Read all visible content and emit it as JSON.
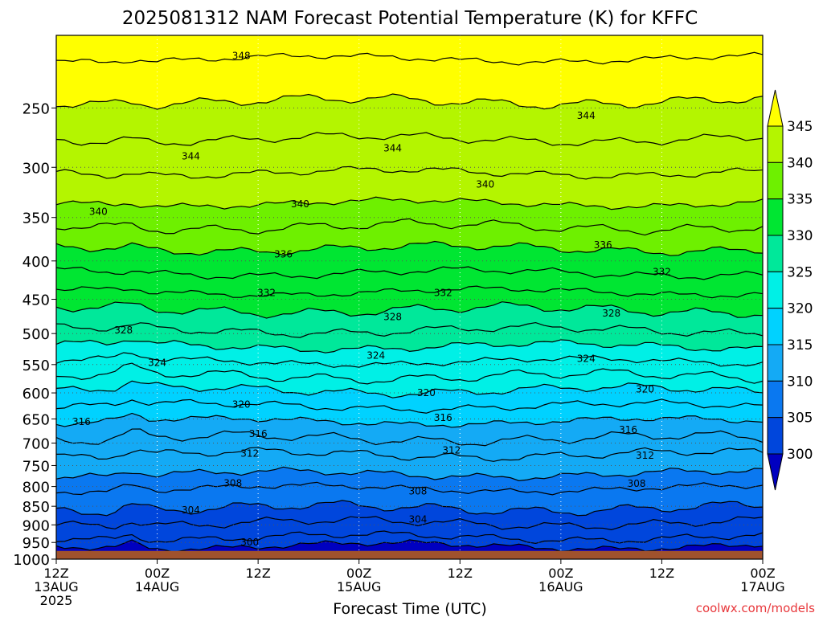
{
  "chart_data": {
    "type": "heatmap",
    "title": "2025081312 NAM Forecast Potential Temperature (K) for KFFC",
    "xlabel": "Forecast Time (UTC)",
    "ylabel": "",
    "credit": "coolwx.com/models",
    "x_ticks": [
      {
        "hours": 0,
        "line1": "12Z",
        "line2": "13AUG",
        "line3": "2025"
      },
      {
        "hours": 12,
        "line1": "00Z",
        "line2": "14AUG",
        "line3": ""
      },
      {
        "hours": 24,
        "line1": "12Z",
        "line2": "",
        "line3": ""
      },
      {
        "hours": 36,
        "line1": "00Z",
        "line2": "15AUG",
        "line3": ""
      },
      {
        "hours": 48,
        "line1": "12Z",
        "line2": "",
        "line3": ""
      },
      {
        "hours": 60,
        "line1": "00Z",
        "line2": "16AUG",
        "line3": ""
      },
      {
        "hours": 72,
        "line1": "12Z",
        "line2": "",
        "line3": ""
      },
      {
        "hours": 84,
        "line1": "00Z",
        "line2": "17AUG",
        "line3": ""
      }
    ],
    "xlim_hours": [
      0,
      84
    ],
    "y_ticks": [
      250,
      300,
      350,
      400,
      450,
      500,
      550,
      600,
      650,
      700,
      750,
      800,
      850,
      900,
      950,
      1000
    ],
    "ylim_hpa": [
      200,
      1000
    ],
    "y_scale": "log-pressure",
    "surface_pressure_hpa": 975,
    "grid": true,
    "colorbar": {
      "levels": [
        300,
        305,
        310,
        315,
        320,
        325,
        330,
        335,
        340,
        345
      ],
      "colors": [
        "#0000c0",
        "#0046dc",
        "#0a78f0",
        "#14aaf5",
        "#00d2ff",
        "#00f0e6",
        "#00e89a",
        "#00e632",
        "#6ef000",
        "#b4f500",
        "#ffff00"
      ],
      "extend": "both"
    },
    "isentrope_interval_k": 2,
    "isentropes": [
      {
        "theta": 300,
        "pressure_hpa": 960
      },
      {
        "theta": 302,
        "pressure_hpa": 935
      },
      {
        "theta": 304,
        "pressure_hpa": 895
      },
      {
        "theta": 306,
        "pressure_hpa": 855
      },
      {
        "theta": 308,
        "pressure_hpa": 805
      },
      {
        "theta": 310,
        "pressure_hpa": 770
      },
      {
        "theta": 312,
        "pressure_hpa": 725
      },
      {
        "theta": 314,
        "pressure_hpa": 690
      },
      {
        "theta": 316,
        "pressure_hpa": 655
      },
      {
        "theta": 318,
        "pressure_hpa": 625
      },
      {
        "theta": 320,
        "pressure_hpa": 595
      },
      {
        "theta": 322,
        "pressure_hpa": 570
      },
      {
        "theta": 324,
        "pressure_hpa": 545
      },
      {
        "theta": 326,
        "pressure_hpa": 520
      },
      {
        "theta": 328,
        "pressure_hpa": 495
      },
      {
        "theta": 330,
        "pressure_hpa": 465
      },
      {
        "theta": 332,
        "pressure_hpa": 440
      },
      {
        "theta": 334,
        "pressure_hpa": 415
      },
      {
        "theta": 336,
        "pressure_hpa": 385
      },
      {
        "theta": 338,
        "pressure_hpa": 360
      },
      {
        "theta": 340,
        "pressure_hpa": 335
      },
      {
        "theta": 342,
        "pressure_hpa": 305
      },
      {
        "theta": 344,
        "pressure_hpa": 275
      },
      {
        "theta": 346,
        "pressure_hpa": 245
      },
      {
        "theta": 348,
        "pressure_hpa": 215
      }
    ],
    "contour_labels": [
      {
        "theta": 348,
        "hours": 22,
        "pressure_hpa": 213
      },
      {
        "theta": 344,
        "hours": 16,
        "pressure_hpa": 290
      },
      {
        "theta": 344,
        "hours": 40,
        "pressure_hpa": 283
      },
      {
        "theta": 344,
        "hours": 63,
        "pressure_hpa": 256
      },
      {
        "theta": 340,
        "hours": 5,
        "pressure_hpa": 344
      },
      {
        "theta": 340,
        "hours": 29,
        "pressure_hpa": 336
      },
      {
        "theta": 340,
        "hours": 51,
        "pressure_hpa": 316
      },
      {
        "theta": 336,
        "hours": 27,
        "pressure_hpa": 392
      },
      {
        "theta": 336,
        "hours": 65,
        "pressure_hpa": 381
      },
      {
        "theta": 332,
        "hours": 25,
        "pressure_hpa": 441
      },
      {
        "theta": 332,
        "hours": 46,
        "pressure_hpa": 441
      },
      {
        "theta": 332,
        "hours": 72,
        "pressure_hpa": 414
      },
      {
        "theta": 328,
        "hours": 8,
        "pressure_hpa": 495
      },
      {
        "theta": 328,
        "hours": 40,
        "pressure_hpa": 475
      },
      {
        "theta": 328,
        "hours": 66,
        "pressure_hpa": 470
      },
      {
        "theta": 324,
        "hours": 12,
        "pressure_hpa": 547
      },
      {
        "theta": 324,
        "hours": 38,
        "pressure_hpa": 535
      },
      {
        "theta": 324,
        "hours": 63,
        "pressure_hpa": 540
      },
      {
        "theta": 320,
        "hours": 22,
        "pressure_hpa": 622
      },
      {
        "theta": 320,
        "hours": 44,
        "pressure_hpa": 600
      },
      {
        "theta": 320,
        "hours": 70,
        "pressure_hpa": 593
      },
      {
        "theta": 316,
        "hours": 3,
        "pressure_hpa": 656
      },
      {
        "theta": 316,
        "hours": 24,
        "pressure_hpa": 680
      },
      {
        "theta": 316,
        "hours": 46,
        "pressure_hpa": 648
      },
      {
        "theta": 316,
        "hours": 68,
        "pressure_hpa": 672
      },
      {
        "theta": 312,
        "hours": 23,
        "pressure_hpa": 723
      },
      {
        "theta": 312,
        "hours": 47,
        "pressure_hpa": 716
      },
      {
        "theta": 312,
        "hours": 70,
        "pressure_hpa": 727
      },
      {
        "theta": 308,
        "hours": 21,
        "pressure_hpa": 792
      },
      {
        "theta": 308,
        "hours": 43,
        "pressure_hpa": 812
      },
      {
        "theta": 308,
        "hours": 69,
        "pressure_hpa": 793
      },
      {
        "theta": 304,
        "hours": 16,
        "pressure_hpa": 860
      },
      {
        "theta": 304,
        "hours": 43,
        "pressure_hpa": 885
      },
      {
        "theta": 300,
        "hours": 23,
        "pressure_hpa": 950
      }
    ]
  }
}
